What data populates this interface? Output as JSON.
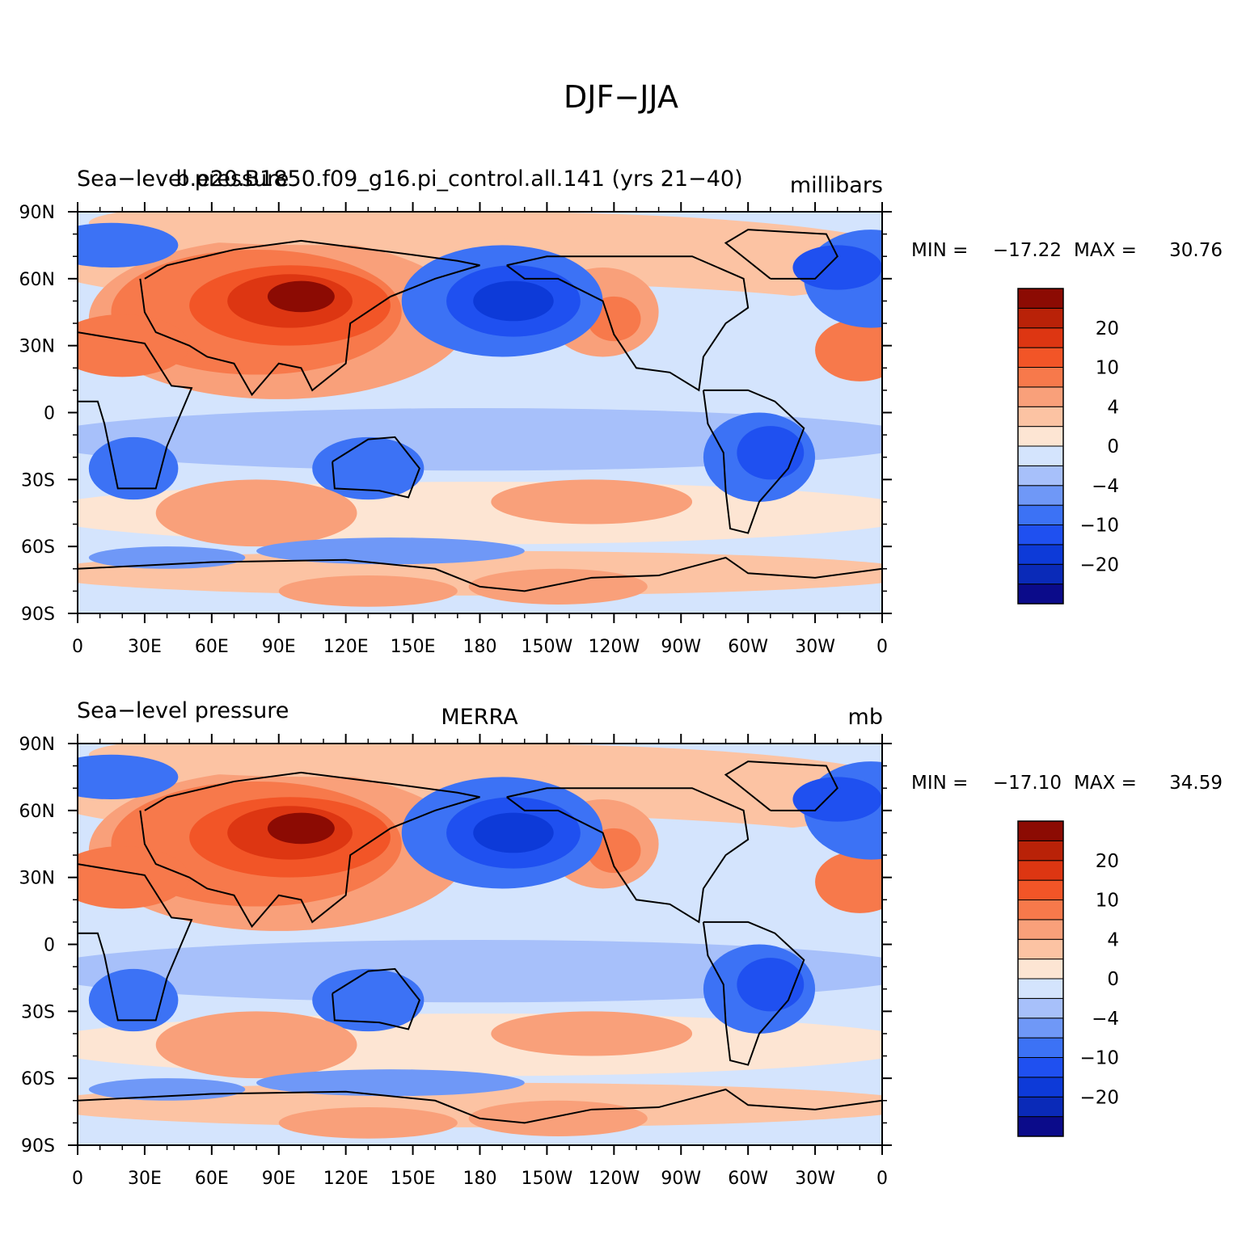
{
  "figure": {
    "title": "DJF−JJA"
  },
  "colors": {
    "scale": [
      "#0b0b8a",
      "#0a2ab8",
      "#0d3ad8",
      "#1f50f0",
      "#3c72f5",
      "#6f98f7",
      "#a7c0fa",
      "#d4e4fd",
      "#fde5d3",
      "#fcc3a3",
      "#f9a07a",
      "#f7794b",
      "#f25527",
      "#dd3612",
      "#b92208",
      "#8c0b03"
    ],
    "coast": "#000000"
  },
  "panels": [
    {
      "id": "model",
      "left_title": "Sea−level pressure",
      "center_title": "b.e20.B1850.f09_g16.pi_control.all.141 (yrs 21−40)",
      "right_title": "millibars",
      "min_label": "MIN =",
      "min_value": "−17.22",
      "max_label": "MAX =",
      "max_value": "30.76"
    },
    {
      "id": "obs",
      "left_title": "Sea−level pressure",
      "center_title": "MERRA",
      "right_title": "mb",
      "min_label": "MIN =",
      "min_value": "−17.10",
      "max_label": "MAX =",
      "max_value": "34.59"
    }
  ],
  "axes": {
    "lat_labels": [
      "90N",
      "60N",
      "30N",
      "0",
      "30S",
      "60S",
      "90S"
    ],
    "lon_labels": [
      "0",
      "30E",
      "60E",
      "90E",
      "120E",
      "150E",
      "180",
      "150W",
      "120W",
      "90W",
      "60W",
      "30W",
      "0"
    ]
  },
  "colorbar": {
    "labels": [
      "20",
      "10",
      "4",
      "0",
      "−4",
      "−10",
      "−20"
    ]
  }
}
